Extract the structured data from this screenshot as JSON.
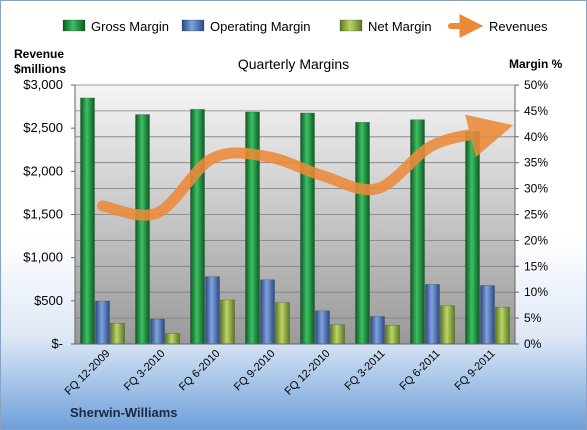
{
  "chart_data": {
    "type": "bar",
    "title": "Quarterly Margins",
    "company": "Sherwin-Williams",
    "categories": [
      "FQ 12-2009",
      "FQ 3-2010",
      "FQ 6-2010",
      "FQ 9-2010",
      "FQ 12-2010",
      "FQ 3-2011",
      "FQ 6-2011",
      "FQ 9-2011"
    ],
    "series": [
      {
        "name": "Gross Margin",
        "type": "bar",
        "axis": "right",
        "color": "#1e8c3e",
        "values": [
          0.475,
          0.443,
          0.453,
          0.448,
          0.446,
          0.428,
          0.433,
          0.41
        ]
      },
      {
        "name": "Operating Margin",
        "type": "bar",
        "axis": "right",
        "color": "#4a72b8",
        "values": [
          0.083,
          0.048,
          0.13,
          0.124,
          0.064,
          0.053,
          0.115,
          0.113
        ]
      },
      {
        "name": "Net Margin",
        "type": "bar",
        "axis": "right",
        "color": "#8cad3c",
        "values": [
          0.04,
          0.02,
          0.085,
          0.08,
          0.037,
          0.036,
          0.074,
          0.071
        ]
      },
      {
        "name": "Revenues",
        "type": "line",
        "axis": "left",
        "color": "#ed8a3a",
        "values": [
          1600,
          1520,
          2150,
          2170,
          1950,
          1800,
          2300,
          2460
        ]
      }
    ],
    "left_axis": {
      "title_line1": "Revenue",
      "title_line2": "$millions",
      "min": 0,
      "max": 3000,
      "ticks": [
        "$-",
        "$500",
        "$1,000",
        "$1,500",
        "$2,000",
        "$2,500",
        "$3,000"
      ]
    },
    "right_axis": {
      "title": "Margin %",
      "min": 0,
      "max": 0.5,
      "ticks": [
        "0%",
        "5%",
        "10%",
        "15%",
        "20%",
        "25%",
        "30%",
        "35%",
        "40%",
        "45%",
        "50%"
      ]
    },
    "legend_position": "top",
    "grid": true
  },
  "colors": {
    "gross": "#1e8c3e",
    "operating": "#4a72b8",
    "net": "#8cad3c",
    "revenues": "#ed8a3a",
    "plot_top": "#f4f4f4",
    "plot_bottom": "#9a9a9a"
  }
}
